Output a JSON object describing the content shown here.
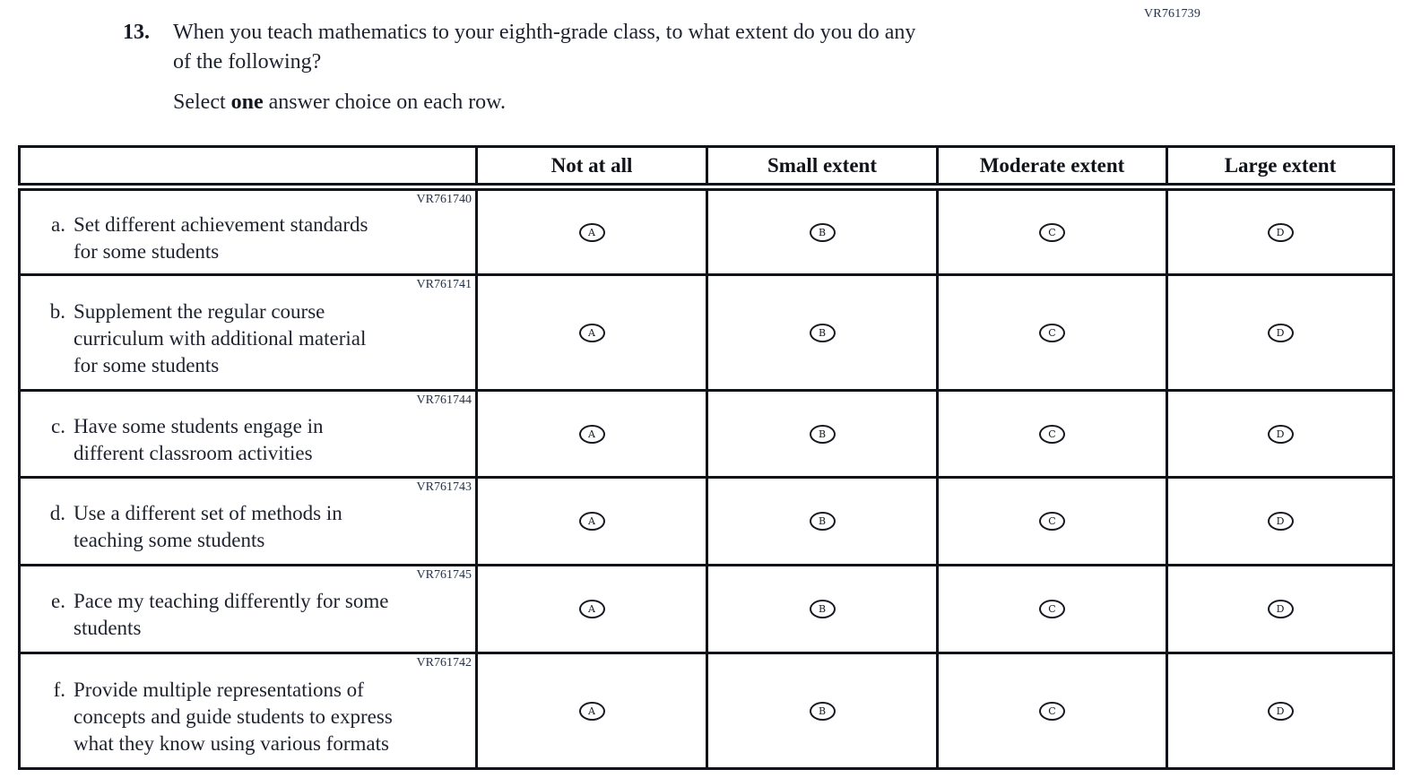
{
  "page_code": "VR761739",
  "question": {
    "number": "13.",
    "text": "When you teach mathematics to your eighth-grade class, to what extent do you do any\nof the following?",
    "instruction_prefix": "Select ",
    "instruction_bold": "one",
    "instruction_suffix": " answer choice on each row."
  },
  "table": {
    "columns": [
      "Not at all",
      "Small extent",
      "Moderate extent",
      "Large extent"
    ],
    "choices": [
      "A",
      "B",
      "C",
      "D"
    ],
    "rows": [
      {
        "code": "VR761740",
        "letter": "a.",
        "text": "Set different achievement standards\nfor some students"
      },
      {
        "code": "VR761741",
        "letter": "b.",
        "text": "Supplement the regular course\ncurriculum with additional material\nfor some students"
      },
      {
        "code": "VR761744",
        "letter": "c.",
        "text": "Have some students engage in\ndifferent classroom activities"
      },
      {
        "code": "VR761743",
        "letter": "d.",
        "text": "Use a different set of methods in\nteaching some students"
      },
      {
        "code": "VR761745",
        "letter": "e.",
        "text": "Pace my teaching differently for some\nstudents"
      },
      {
        "code": "VR761742",
        "letter": "f.",
        "text": "Provide multiple representations of\nconcepts and guide students to express\nwhat they know using various formats"
      }
    ]
  }
}
